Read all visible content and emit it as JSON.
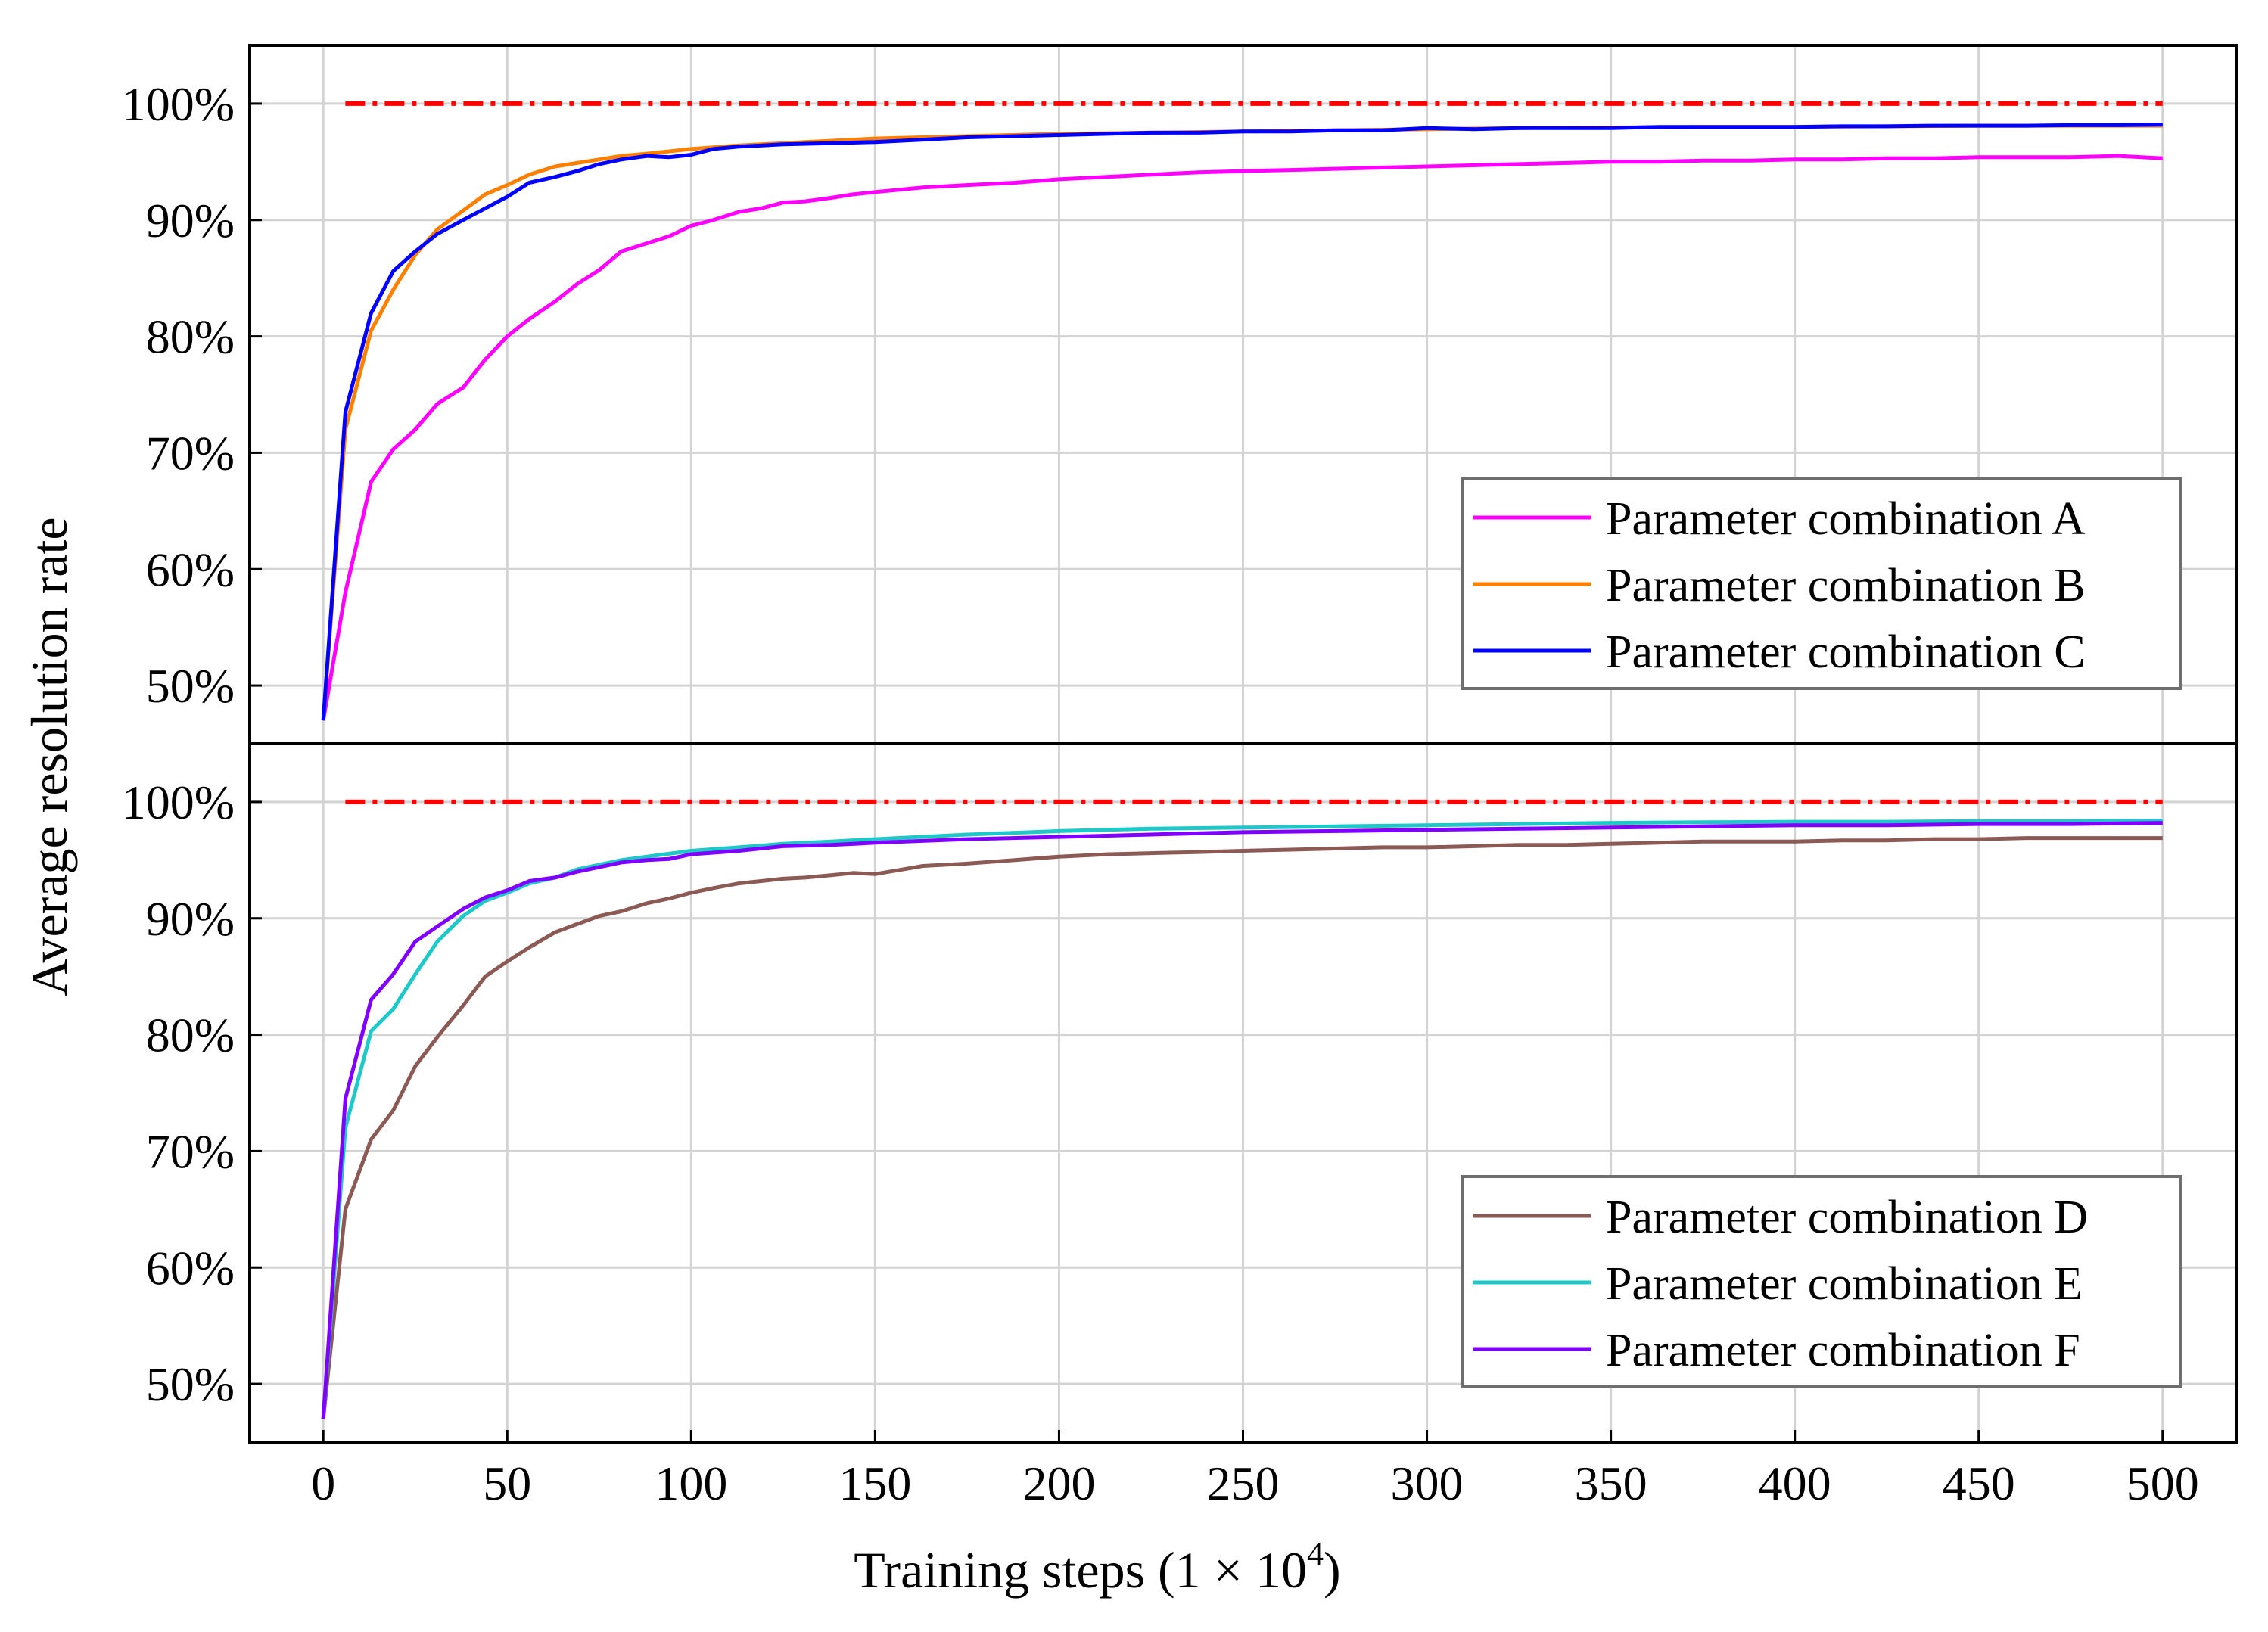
{
  "chart_data": {
    "type": "line",
    "ylabel": "Average resolution rate",
    "xlabel_main": "Training steps (1 × 10",
    "xlabel_sup": "4",
    "xlabel_close": ")",
    "xlim": [
      -20,
      520
    ],
    "x_ticks": [
      0,
      50,
      100,
      150,
      200,
      250,
      300,
      350,
      400,
      450,
      500
    ],
    "x_tick_labels": [
      "0",
      "50",
      "100",
      "150",
      "200",
      "250",
      "300",
      "350",
      "400",
      "450",
      "500"
    ],
    "panels": [
      {
        "name": "top",
        "ylim": [
          45,
          105
        ],
        "y_ticks": [
          50,
          60,
          70,
          80,
          90,
          100
        ],
        "y_tick_labels": [
          "50%",
          "60%",
          "70%",
          "80%",
          "90%",
          "100%"
        ],
        "reference_line": {
          "y": 100,
          "x": [
            6,
            500
          ],
          "color": "#ff0000",
          "style": "dash-dot"
        },
        "legend_position": "lower-right",
        "series": [
          {
            "name": "Parameter combination A",
            "color": "#ff00ff",
            "x": [
              0,
              6,
              13,
              19,
              25,
              31,
              38,
              44,
              50,
              56,
              63,
              69,
              75,
              81,
              88,
              94,
              100,
              106,
              113,
              119,
              125,
              131,
              138,
              144,
              150,
              163,
              175,
              188,
              200,
              213,
              225,
              238,
              250,
              263,
              275,
              288,
              300,
              313,
              325,
              338,
              350,
              363,
              375,
              388,
              400,
              413,
              425,
              438,
              450,
              463,
              475,
              488,
              500
            ],
            "y": [
              47,
              58,
              67.5,
              70.3,
              72,
              74.2,
              75.6,
              78,
              80,
              81.5,
              83,
              84.5,
              85.7,
              87.3,
              88,
              88.6,
              89.5,
              90,
              90.7,
              91,
              91.5,
              91.6,
              91.9,
              92.2,
              92.4,
              92.8,
              93,
              93.2,
              93.5,
              93.7,
              93.9,
              94.1,
              94.2,
              94.3,
              94.4,
              94.5,
              94.6,
              94.7,
              94.8,
              94.9,
              95,
              95,
              95.1,
              95.1,
              95.2,
              95.2,
              95.3,
              95.3,
              95.4,
              95.4,
              95.4,
              95.5,
              95.3
            ]
          },
          {
            "name": "Parameter combination B",
            "color": "#ff8000",
            "x": [
              0,
              6,
              13,
              19,
              25,
              31,
              38,
              44,
              50,
              56,
              63,
              69,
              75,
              81,
              88,
              94,
              100,
              113,
              125,
              138,
              150,
              175,
              200,
              225,
              250,
              275,
              300,
              325,
              350,
              375,
              400,
              425,
              450,
              475,
              500
            ],
            "y": [
              47,
              72,
              80.5,
              84,
              87,
              89.2,
              90.8,
              92.2,
              93,
              93.9,
              94.6,
              94.9,
              95.2,
              95.5,
              95.7,
              95.9,
              96.1,
              96.4,
              96.6,
              96.8,
              97,
              97.2,
              97.4,
              97.5,
              97.6,
              97.7,
              97.8,
              97.9,
              97.95,
              98,
              98,
              98.05,
              98.1,
              98.1,
              98.1
            ]
          },
          {
            "name": "Parameter combination C",
            "color": "#0000ff",
            "x": [
              0,
              6,
              13,
              19,
              25,
              31,
              38,
              44,
              50,
              56,
              63,
              69,
              75,
              81,
              88,
              94,
              100,
              106,
              113,
              125,
              138,
              150,
              163,
              175,
              188,
              200,
              213,
              225,
              238,
              250,
              263,
              275,
              288,
              300,
              313,
              325,
              338,
              350,
              363,
              375,
              388,
              400,
              413,
              425,
              438,
              450,
              463,
              475,
              488,
              500
            ],
            "y": [
              47,
              73.5,
              82,
              85.6,
              87.3,
              88.8,
              90,
              91,
              92,
              93.2,
              93.7,
              94.2,
              94.8,
              95.2,
              95.5,
              95.4,
              95.6,
              96.1,
              96.3,
              96.5,
              96.6,
              96.7,
              96.9,
              97.1,
              97.2,
              97.3,
              97.4,
              97.5,
              97.5,
              97.6,
              97.6,
              97.7,
              97.7,
              97.9,
              97.8,
              97.9,
              97.9,
              97.9,
              98,
              98,
              98,
              98,
              98.05,
              98.05,
              98.1,
              98.1,
              98.1,
              98.15,
              98.15,
              98.2
            ]
          }
        ]
      },
      {
        "name": "bottom",
        "ylim": [
          45,
          105
        ],
        "y_ticks": [
          50,
          60,
          70,
          80,
          90,
          100
        ],
        "y_tick_labels": [
          "50%",
          "60%",
          "70%",
          "80%",
          "90%",
          "100%"
        ],
        "reference_line": {
          "y": 100,
          "x": [
            6,
            500
          ],
          "color": "#ff0000",
          "style": "dash-dot"
        },
        "legend_position": "lower-right",
        "series": [
          {
            "name": "Parameter combination D",
            "color": "#8b5a55",
            "x": [
              0,
              6,
              13,
              19,
              25,
              31,
              38,
              44,
              50,
              56,
              63,
              69,
              75,
              81,
              88,
              94,
              100,
              106,
              113,
              119,
              125,
              131,
              138,
              144,
              150,
              163,
              175,
              188,
              200,
              213,
              225,
              238,
              250,
              263,
              275,
              288,
              300,
              313,
              325,
              338,
              350,
              363,
              375,
              388,
              400,
              413,
              425,
              438,
              450,
              463,
              475,
              488,
              500
            ],
            "y": [
              47,
              65,
              71,
              73.5,
              77.3,
              79.8,
              82.5,
              85,
              86.3,
              87.5,
              88.8,
              89.5,
              90.2,
              90.6,
              91.3,
              91.7,
              92.2,
              92.6,
              93,
              93.2,
              93.4,
              93.5,
              93.7,
              93.9,
              93.8,
              94.5,
              94.7,
              95,
              95.3,
              95.5,
              95.6,
              95.7,
              95.8,
              95.9,
              96,
              96.1,
              96.1,
              96.2,
              96.3,
              96.3,
              96.4,
              96.5,
              96.6,
              96.6,
              96.6,
              96.7,
              96.7,
              96.8,
              96.8,
              96.9,
              96.9,
              96.9,
              96.9
            ]
          },
          {
            "name": "Parameter combination E",
            "color": "#1ec8c8",
            "x": [
              0,
              6,
              13,
              19,
              25,
              31,
              38,
              44,
              50,
              56,
              63,
              69,
              75,
              81,
              88,
              100,
              113,
              125,
              138,
              150,
              175,
              200,
              225,
              250,
              275,
              300,
              325,
              350,
              375,
              400,
              425,
              450,
              475,
              500
            ],
            "y": [
              47,
              72,
              80.3,
              82.2,
              85.2,
              88,
              90.2,
              91.5,
              92.2,
              93,
              93.5,
              94.2,
              94.6,
              95,
              95.3,
              95.8,
              96.1,
              96.4,
              96.6,
              96.8,
              97.2,
              97.5,
              97.7,
              97.8,
              97.9,
              98,
              98.1,
              98.2,
              98.25,
              98.3,
              98.3,
              98.35,
              98.35,
              98.4
            ]
          },
          {
            "name": "Parameter combination F",
            "color": "#8000ff",
            "x": [
              0,
              6,
              13,
              19,
              25,
              31,
              38,
              44,
              50,
              56,
              63,
              69,
              75,
              81,
              88,
              94,
              100,
              113,
              125,
              138,
              150,
              175,
              200,
              225,
              250,
              275,
              300,
              325,
              350,
              375,
              400,
              425,
              450,
              475,
              500
            ],
            "y": [
              47,
              74.5,
              83,
              85.2,
              88,
              89.3,
              90.8,
              91.8,
              92.4,
              93.2,
              93.5,
              94,
              94.4,
              94.8,
              95,
              95.1,
              95.5,
              95.8,
              96.2,
              96.3,
              96.5,
              96.8,
              97,
              97.2,
              97.4,
              97.5,
              97.6,
              97.7,
              97.8,
              97.9,
              98,
              98,
              98.1,
              98.1,
              98.2
            ]
          }
        ]
      }
    ]
  },
  "colors": {
    "grid": "#d3d3d3",
    "axis": "#000000",
    "reference": "#ff0000",
    "legend_border": "#6e6e6e"
  }
}
